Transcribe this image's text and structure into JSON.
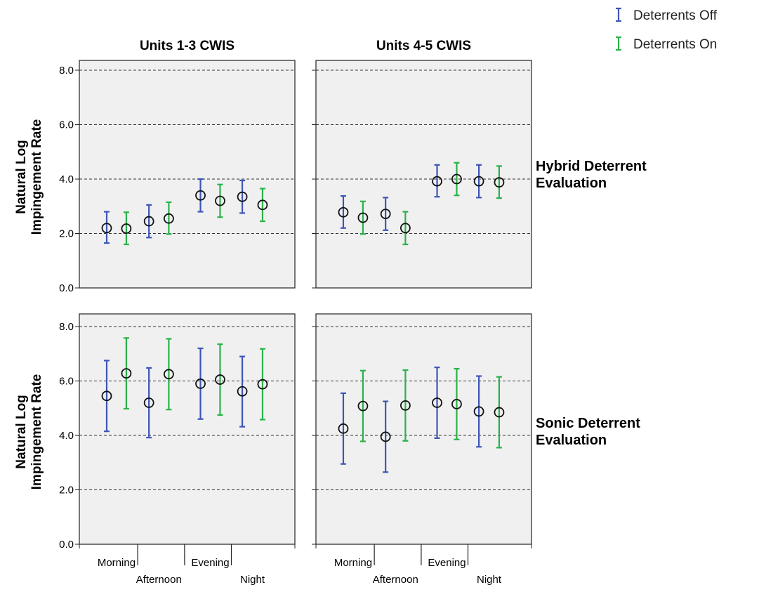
{
  "legend": [
    {
      "label": "Deterrents Off",
      "color": "#3d55b8"
    },
    {
      "label": "Deterrents On",
      "color": "#2ab24a"
    }
  ],
  "columns": [
    "Units 1-3 CWIS",
    "Units 4-5 CWIS"
  ],
  "rows": [
    "Hybrid Deterrent Evaluation",
    "Sonic Deterrent Evaluation"
  ],
  "row_label_lines": [
    [
      "Hybrid Deterrent",
      "Evaluation"
    ],
    [
      "Sonic Deterrent",
      "Evaluation"
    ]
  ],
  "y_axis_label_lines": [
    "Natural Log",
    "Impingement Rate"
  ],
  "colors": {
    "off": "#3d55b8",
    "on": "#2ab24a",
    "panel_bg": "#f0f0f0",
    "gridline": "#333333"
  },
  "chart_data": {
    "type": "scatter",
    "subtype": "point-with-error-bars",
    "categories": [
      "Morning",
      "Afternoon",
      "Evening",
      "Night"
    ],
    "ylim": [
      0,
      8
    ],
    "yticks": [
      0,
      2,
      4,
      6,
      8
    ],
    "ytick_labels": [
      "0.0",
      "2.0",
      "4.0",
      "6.0",
      "8.0"
    ],
    "ylabel": "Natural Log Impingement Rate",
    "grid": "dashed horizontal at 2, 4, 6, 8",
    "legend_position": "top-right",
    "panels": [
      {
        "row": "Hybrid Deterrent Evaluation",
        "column": "Units 1-3 CWIS",
        "series": [
          {
            "name": "Deterrents Off",
            "mean": [
              2.2,
              2.45,
              3.4,
              3.35
            ],
            "lower": [
              1.65,
              1.85,
              2.8,
              2.75
            ],
            "upper": [
              2.8,
              3.05,
              4.0,
              3.95
            ]
          },
          {
            "name": "Deterrents On",
            "mean": [
              2.18,
              2.55,
              3.2,
              3.05
            ],
            "lower": [
              1.6,
              1.98,
              2.6,
              2.45
            ],
            "upper": [
              2.78,
              3.15,
              3.8,
              3.65
            ]
          }
        ]
      },
      {
        "row": "Hybrid Deterrent Evaluation",
        "column": "Units 4-5 CWIS",
        "series": [
          {
            "name": "Deterrents Off",
            "mean": [
              2.78,
              2.72,
              3.92,
              3.92
            ],
            "lower": [
              2.2,
              2.12,
              3.35,
              3.32
            ],
            "upper": [
              3.38,
              3.32,
              4.52,
              4.52
            ]
          },
          {
            "name": "Deterrents On",
            "mean": [
              2.58,
              2.2,
              4.0,
              3.88
            ],
            "lower": [
              1.98,
              1.6,
              3.4,
              3.3
            ],
            "upper": [
              3.18,
              2.8,
              4.6,
              4.48
            ]
          }
        ]
      },
      {
        "row": "Sonic Deterrent Evaluation",
        "column": "Units 1-3 CWIS",
        "series": [
          {
            "name": "Deterrents Off",
            "mean": [
              5.45,
              5.2,
              5.9,
              5.62
            ],
            "lower": [
              4.15,
              3.92,
              4.6,
              4.32
            ],
            "upper": [
              6.75,
              6.48,
              7.2,
              6.9
            ]
          },
          {
            "name": "Deterrents On",
            "mean": [
              6.28,
              6.25,
              6.05,
              5.88
            ],
            "lower": [
              4.98,
              4.95,
              4.75,
              4.58
            ],
            "upper": [
              7.58,
              7.55,
              7.35,
              7.18
            ]
          }
        ]
      },
      {
        "row": "Sonic Deterrent Evaluation",
        "column": "Units 4-5 CWIS",
        "series": [
          {
            "name": "Deterrents Off",
            "mean": [
              4.25,
              3.95,
              5.2,
              4.88
            ],
            "lower": [
              2.95,
              2.65,
              3.9,
              3.58
            ],
            "upper": [
              5.55,
              5.25,
              6.5,
              6.18
            ]
          },
          {
            "name": "Deterrents On",
            "mean": [
              5.08,
              5.1,
              5.15,
              4.85
            ],
            "lower": [
              3.78,
              3.8,
              3.85,
              3.55
            ],
            "upper": [
              6.38,
              6.4,
              6.45,
              6.15
            ]
          }
        ]
      }
    ]
  }
}
